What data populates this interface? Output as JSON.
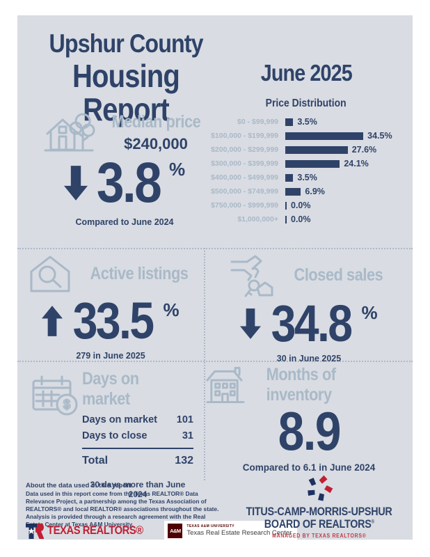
{
  "colors": {
    "background": "#d9dce2",
    "navy": "#2f4369",
    "light_blue": "#a9b9c8",
    "red": "#c11f33",
    "maroon": "#500000"
  },
  "header": {
    "title_line1": "Upshur County",
    "title_line2": "Housing Report",
    "period": "June 2025"
  },
  "chart_data": {
    "type": "bar",
    "orientation": "horizontal",
    "title": "Price Distribution",
    "categories": [
      "$0 - $99,999",
      "$100,000 - $199,999",
      "$200,000 - $299,999",
      "$300,000 - $399,999",
      "$400,000 - $499,999",
      "$500,000 - $749,999",
      "$750,000 - $999,999",
      "$1,000,000+"
    ],
    "values": [
      3.5,
      34.5,
      27.6,
      24.1,
      3.5,
      6.9,
      0.0,
      0.0
    ],
    "value_labels": [
      "3.5%",
      "34.5%",
      "27.6%",
      "24.1%",
      "3.5%",
      "6.9%",
      "0.0%",
      "0.0%"
    ],
    "xlim": [
      0,
      40
    ],
    "grid": false,
    "legend": "none",
    "bar_color": "#2f4369"
  },
  "median_price": {
    "title": "Median price",
    "value": "$240,000",
    "direction": "down",
    "change_value": "3.8",
    "change_unit": "%",
    "note": "Compared to June 2024"
  },
  "active_listings": {
    "title": "Active listings",
    "direction": "up",
    "change_value": "33.5",
    "change_unit": "%",
    "note": "279 in June 2025"
  },
  "closed_sales": {
    "title": "Closed sales",
    "direction": "down",
    "change_value": "34.8",
    "change_unit": "%",
    "note": "30 in June 2025"
  },
  "days_on_market": {
    "title": "Days on market",
    "rows": [
      {
        "label": "Days on market",
        "value": "101"
      },
      {
        "label": "Days to close",
        "value": "31"
      }
    ],
    "total_label": "Total",
    "total_value": "132",
    "note": "30 days more than June 2024"
  },
  "months_of_inventory": {
    "title": "Months of inventory",
    "value": "8.9",
    "note": "Compared to 6.1 in June 2024"
  },
  "footer": {
    "about_heading": "About the data used in this report",
    "about_text": "Data used in this report come from the Texas REALTOR® Data Relevance Project, a partnership among the Texas Association of REALTORS® and local REALTOR® associations throughout the state. Analysis is provided through a research agreement with the Real Estate Center at Texas A&M University.",
    "texas_realtors_label": "TEXAS REALTORS®",
    "tamu_mark_label": "A&M",
    "research_center_university": "TEXAS A&M UNIVERSITY",
    "research_center_name": "Texas Real Estate Research Center",
    "board_line1": "TITUS-CAMP-MORRIS-UPSHUR",
    "board_line2": "BOARD OF REALTORS",
    "board_reg": "®",
    "board_tagline": "MANAGED BY TEXAS REALTORS®"
  }
}
